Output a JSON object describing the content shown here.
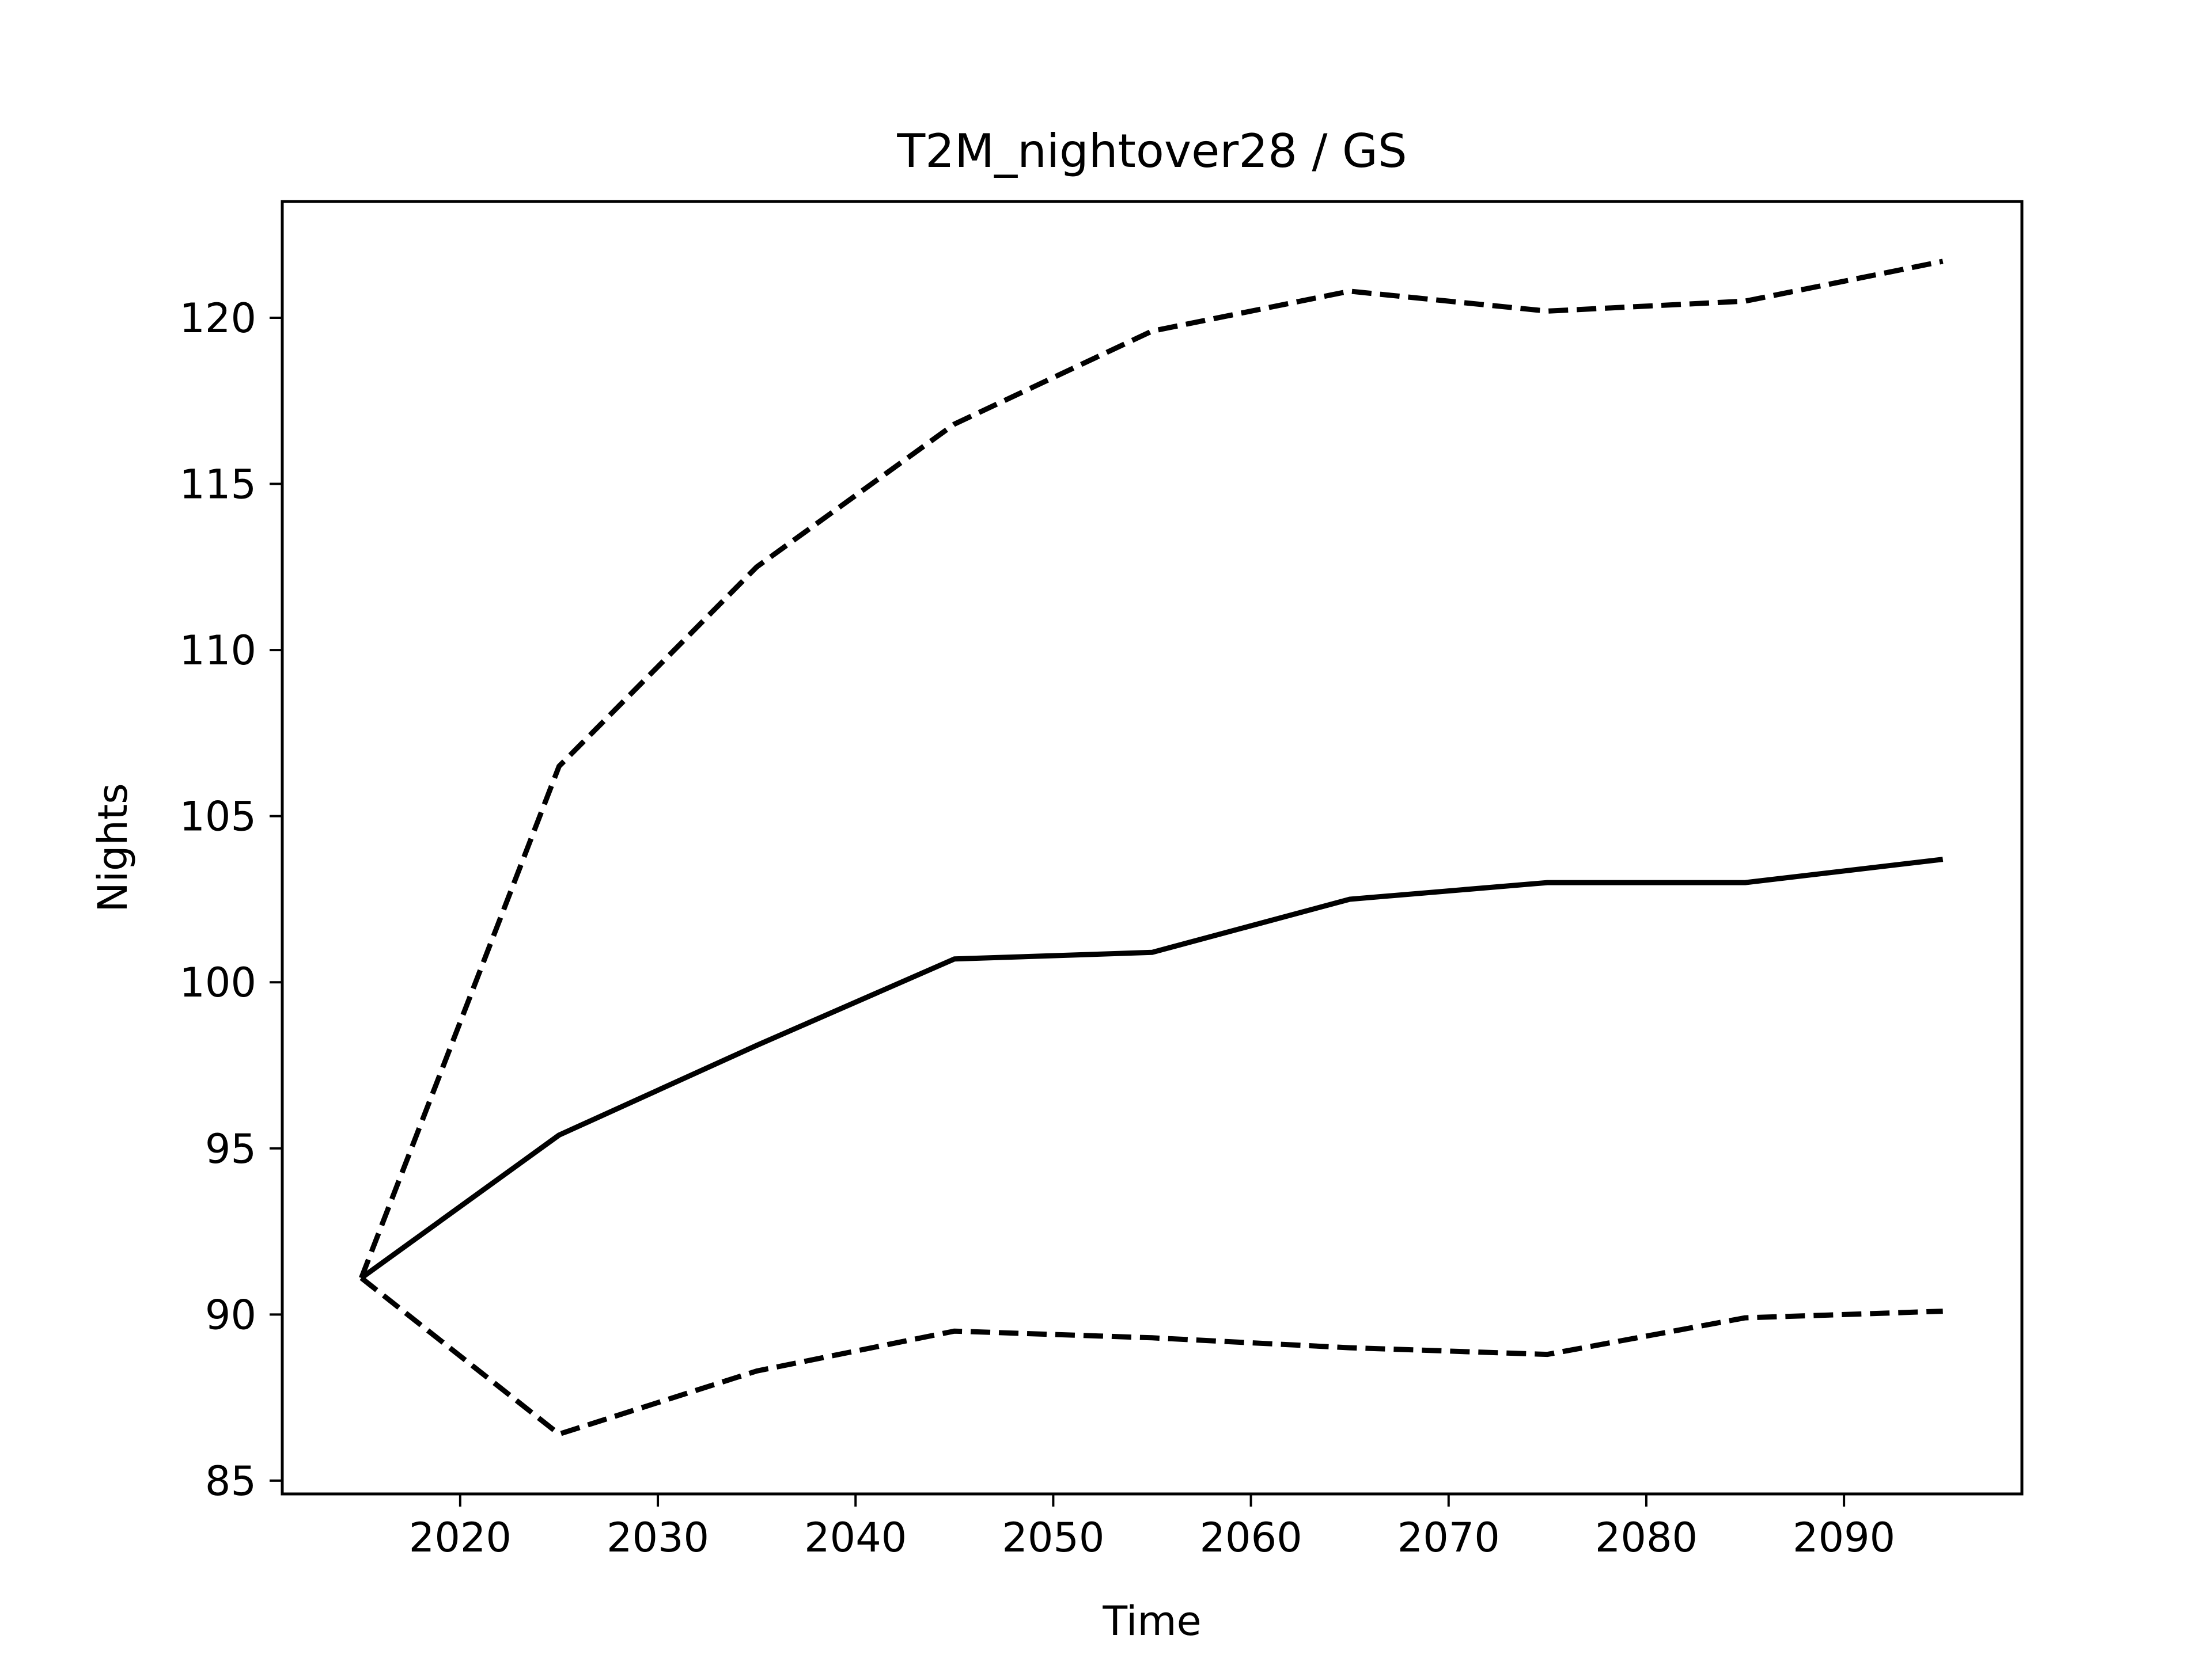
{
  "chart_data": {
    "type": "line",
    "title": "T2M_nightover28 / GS",
    "xlabel": "Time",
    "ylabel": "Nights",
    "xlim": [
      2011,
      2099
    ],
    "ylim": [
      84.6,
      123.5
    ],
    "xticks": [
      2020,
      2030,
      2040,
      2050,
      2060,
      2070,
      2080,
      2090
    ],
    "yticks": [
      85,
      90,
      95,
      100,
      105,
      110,
      115,
      120
    ],
    "x": [
      2015,
      2025,
      2035,
      2045,
      2055,
      2065,
      2075,
      2085,
      2095
    ],
    "series": [
      {
        "style": "dashed",
        "values": [
          91.1,
          106.5,
          112.5,
          116.8,
          119.6,
          120.8,
          120.2,
          120.5,
          121.7
        ]
      },
      {
        "style": "solid",
        "values": [
          91.1,
          95.4,
          98.1,
          100.7,
          100.9,
          102.5,
          103.0,
          103.0,
          103.7
        ]
      },
      {
        "style": "dashed",
        "values": [
          91.1,
          86.4,
          88.3,
          89.5,
          89.3,
          89.0,
          88.8,
          89.9,
          90.1
        ]
      }
    ],
    "grid": false,
    "line_color": "#000000"
  }
}
